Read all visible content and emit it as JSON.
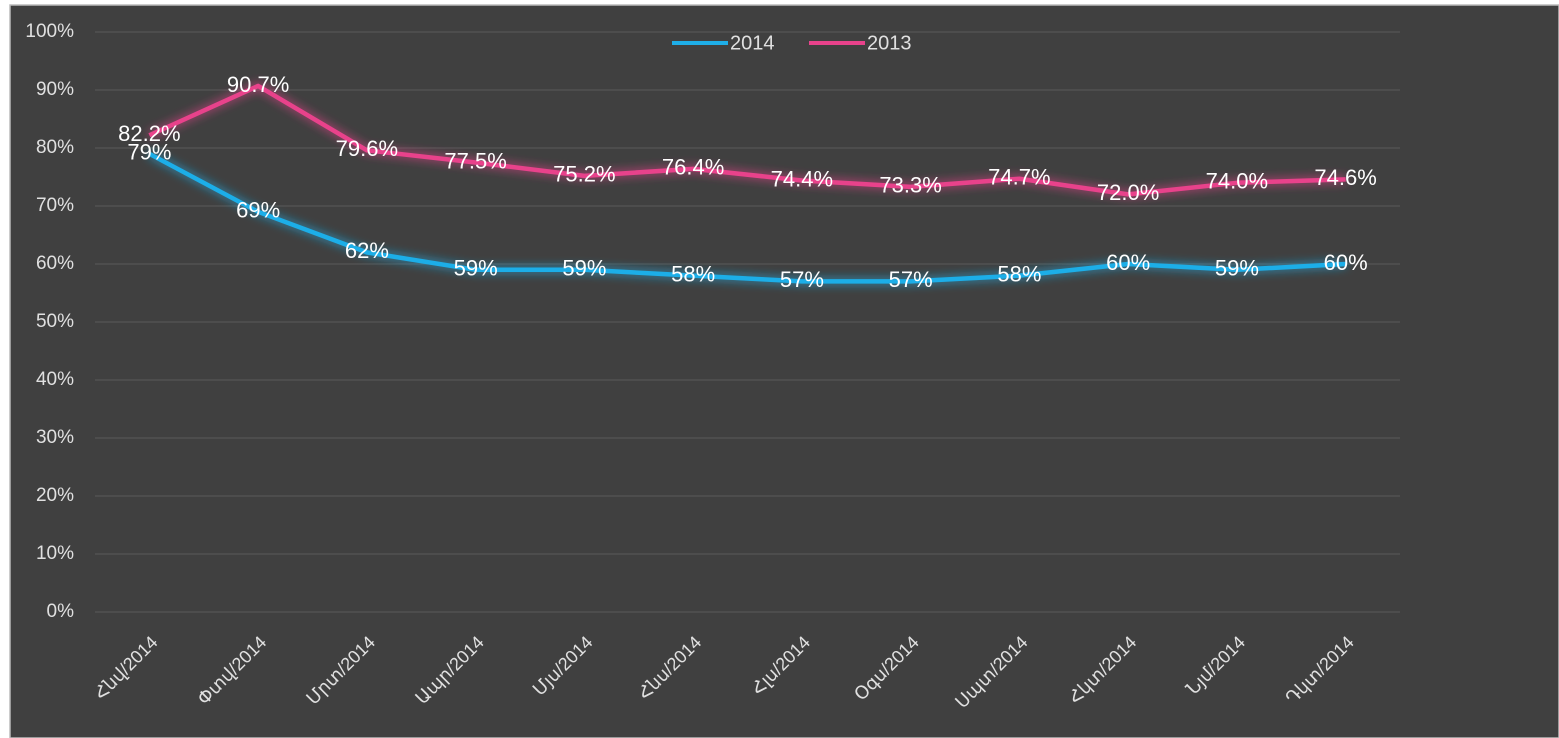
{
  "chart_data": {
    "type": "line",
    "categories": [
      "Հնվ/2014",
      "Փտվ/2014",
      "Մրտ/2014",
      "Ապր/2014",
      "Մյս/2014",
      "Հնս/2014",
      "Հլս/2014",
      "Օգս/2014",
      "Սպտ/2014",
      "Հկտ/2014",
      "Նյմ/2014",
      "Դկտ/2014"
    ],
    "series": [
      {
        "name": "2014",
        "color": "#1eaee8",
        "values": [
          79,
          69,
          62,
          59,
          59,
          58,
          57,
          57,
          58,
          60,
          59,
          60
        ],
        "value_labels": [
          "79%",
          "69%",
          "62%",
          "59%",
          "59%",
          "58%",
          "57%",
          "57%",
          "58%",
          "60%",
          "59%",
          "60%"
        ]
      },
      {
        "name": "2013",
        "color": "#e8428b",
        "values": [
          82.2,
          90.7,
          79.6,
          77.5,
          75.2,
          76.4,
          74.4,
          73.3,
          74.7,
          72.0,
          74.0,
          74.6
        ],
        "value_labels": [
          "82.2%",
          "90.7%",
          "79.6%",
          "77.5%",
          "75.2%",
          "76.4%",
          "74.4%",
          "73.3%",
          "74.7%",
          "72.0%",
          "74.0%",
          "74.6%"
        ]
      }
    ],
    "ylim": [
      0,
      100
    ],
    "yticks": [
      {
        "value": 0,
        "label": "0%"
      },
      {
        "value": 10,
        "label": "10%"
      },
      {
        "value": 20,
        "label": "20%"
      },
      {
        "value": 30,
        "label": "30%"
      },
      {
        "value": 40,
        "label": "40%"
      },
      {
        "value": 50,
        "label": "50%"
      },
      {
        "value": 60,
        "label": "60%"
      },
      {
        "value": 70,
        "label": "70%"
      },
      {
        "value": 80,
        "label": "80%"
      },
      {
        "value": 90,
        "label": "90%"
      },
      {
        "value": 100,
        "label": "100%"
      }
    ],
    "grid": true,
    "legend": "top"
  }
}
